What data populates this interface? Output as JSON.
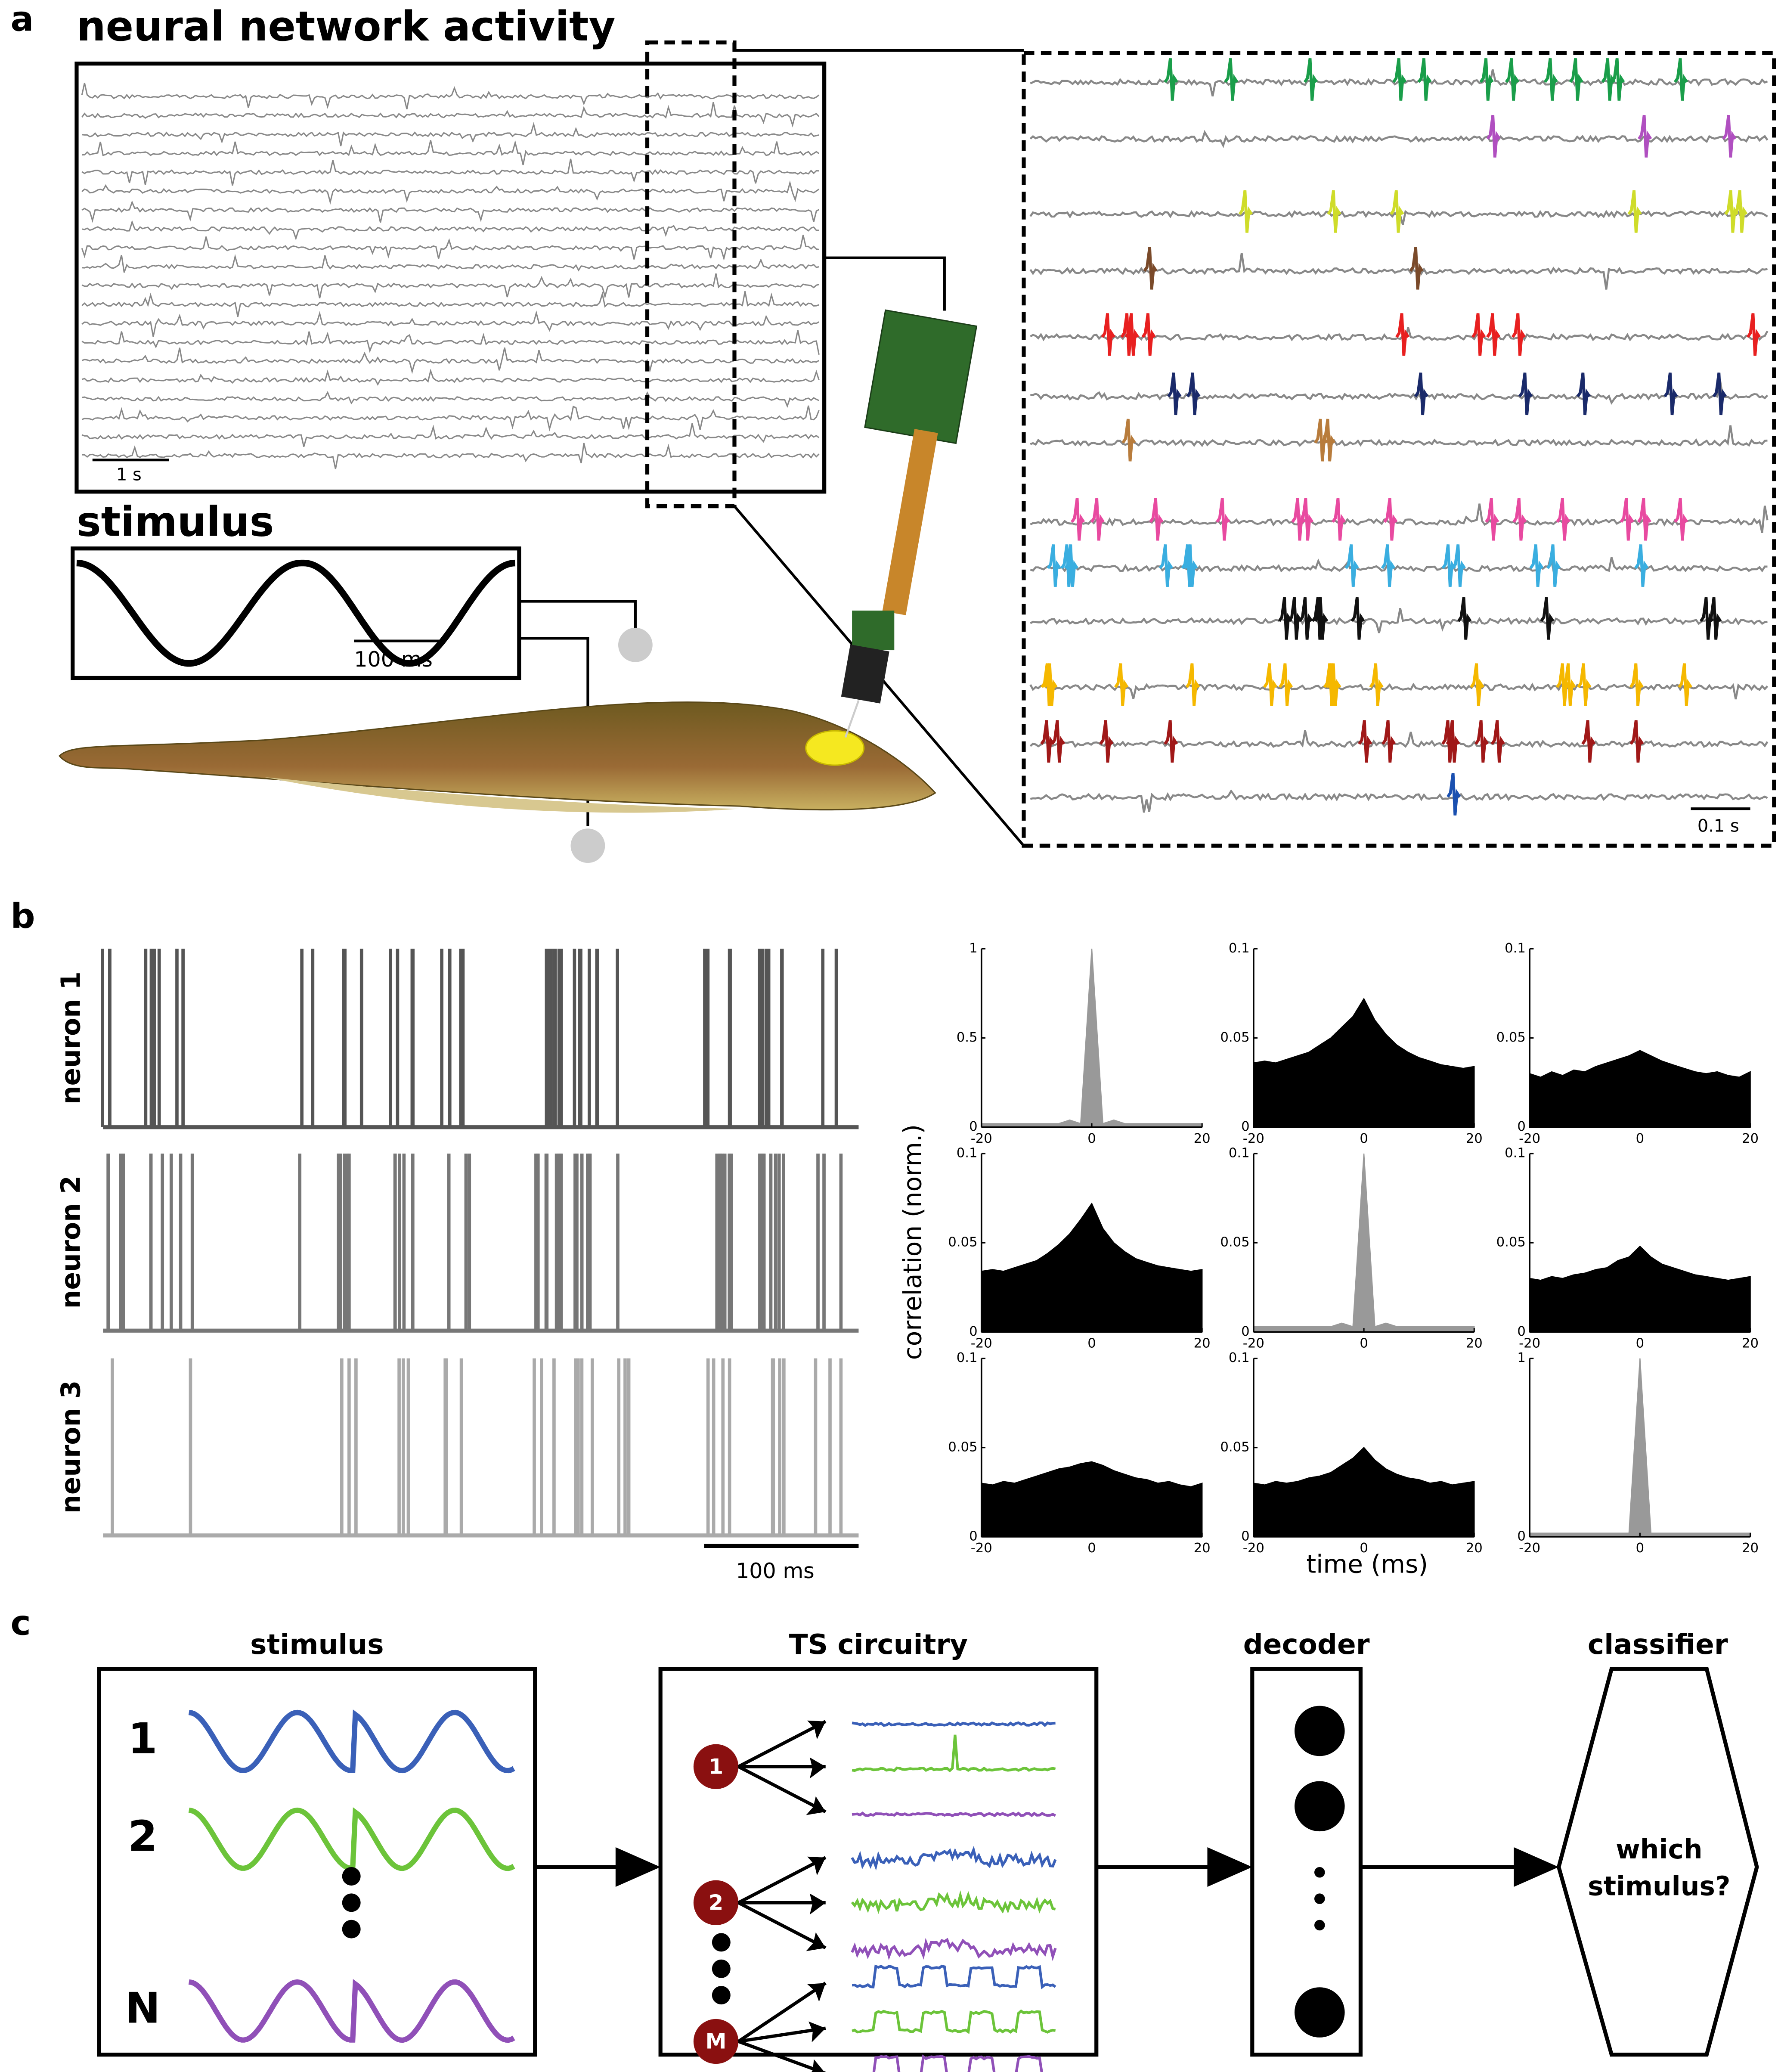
{
  "panel_a": {
    "label": "a",
    "network_title": "neural network activity",
    "network_scale": "1 s",
    "stimulus_title": "stimulus",
    "stimulus_scale": "100 ms",
    "zoom_scale": "0.1 s"
  },
  "panel_b": {
    "label": "b",
    "neurons": [
      "neuron 1",
      "neuron 2",
      "neuron 3"
    ],
    "scale": "100 ms",
    "y_label": "correlation (norm.)",
    "x_label": "time (ms)",
    "xlim": [
      -20,
      20
    ],
    "xticks": [
      -20,
      0,
      20
    ],
    "x": [
      -20,
      -18,
      -16,
      -14,
      -12,
      -10,
      -8,
      -6,
      -4,
      -2,
      0,
      2,
      4,
      6,
      8,
      10,
      12,
      14,
      16,
      18,
      20
    ],
    "plots": [
      {
        "ylim": [
          0,
          1
        ],
        "yticks": [
          0,
          0.5,
          1
        ],
        "color": "#999999",
        "values": [
          0.02,
          0.02,
          0.02,
          0.02,
          0.02,
          0.02,
          0.02,
          0.02,
          0.04,
          0.02,
          1,
          0.02,
          0.04,
          0.02,
          0.02,
          0.02,
          0.02,
          0.02,
          0.02,
          0.02,
          0.02
        ]
      },
      {
        "ylim": [
          0,
          0.1
        ],
        "yticks": [
          0,
          0.05,
          0.1
        ],
        "color": "#000000",
        "values": [
          0.036,
          0.037,
          0.036,
          0.038,
          0.04,
          0.042,
          0.046,
          0.05,
          0.056,
          0.062,
          0.072,
          0.06,
          0.052,
          0.046,
          0.042,
          0.039,
          0.037,
          0.035,
          0.034,
          0.033,
          0.034
        ]
      },
      {
        "ylim": [
          0,
          0.1
        ],
        "yticks": [
          0,
          0.05,
          0.1
        ],
        "color": "#000000",
        "values": [
          0.03,
          0.028,
          0.031,
          0.029,
          0.032,
          0.031,
          0.034,
          0.036,
          0.038,
          0.04,
          0.043,
          0.04,
          0.037,
          0.035,
          0.033,
          0.031,
          0.03,
          0.031,
          0.029,
          0.028,
          0.031
        ]
      },
      {
        "ylim": [
          0,
          0.1
        ],
        "yticks": [
          0,
          0.05,
          0.1
        ],
        "color": "#000000",
        "values": [
          0.034,
          0.035,
          0.034,
          0.036,
          0.038,
          0.04,
          0.044,
          0.049,
          0.055,
          0.063,
          0.072,
          0.058,
          0.05,
          0.045,
          0.041,
          0.039,
          0.037,
          0.036,
          0.035,
          0.034,
          0.035
        ]
      },
      {
        "ylim": [
          0,
          0.1
        ],
        "yticks": [
          0,
          0.05,
          0.1
        ],
        "color": "#999999",
        "values": [
          0.003,
          0.003,
          0.003,
          0.003,
          0.003,
          0.003,
          0.003,
          0.003,
          0.005,
          0.003,
          0.1,
          0.003,
          0.005,
          0.003,
          0.003,
          0.003,
          0.003,
          0.003,
          0.003,
          0.003,
          0.003
        ]
      },
      {
        "ylim": [
          0,
          0.1
        ],
        "yticks": [
          0,
          0.05,
          0.1
        ],
        "color": "#000000",
        "values": [
          0.03,
          0.029,
          0.031,
          0.03,
          0.032,
          0.033,
          0.035,
          0.036,
          0.04,
          0.042,
          0.048,
          0.042,
          0.038,
          0.036,
          0.034,
          0.032,
          0.031,
          0.03,
          0.029,
          0.03,
          0.031
        ]
      },
      {
        "ylim": [
          0,
          0.1
        ],
        "yticks": [
          0,
          0.05,
          0.1
        ],
        "color": "#000000",
        "values": [
          0.03,
          0.029,
          0.031,
          0.03,
          0.032,
          0.034,
          0.036,
          0.038,
          0.039,
          0.041,
          0.042,
          0.04,
          0.037,
          0.035,
          0.033,
          0.032,
          0.03,
          0.031,
          0.029,
          0.028,
          0.03
        ]
      },
      {
        "ylim": [
          0,
          0.1
        ],
        "yticks": [
          0,
          0.05,
          0.1
        ],
        "color": "#000000",
        "values": [
          0.03,
          0.029,
          0.031,
          0.03,
          0.031,
          0.033,
          0.034,
          0.036,
          0.04,
          0.044,
          0.05,
          0.043,
          0.038,
          0.035,
          0.033,
          0.032,
          0.03,
          0.031,
          0.029,
          0.03,
          0.031
        ]
      },
      {
        "ylim": [
          0,
          1
        ],
        "yticks": [
          0,
          1
        ],
        "color": "#999999",
        "values": [
          0.02,
          0.02,
          0.02,
          0.02,
          0.02,
          0.02,
          0.02,
          0.02,
          0.02,
          0.02,
          1,
          0.02,
          0.02,
          0.02,
          0.02,
          0.02,
          0.02,
          0.02,
          0.02,
          0.02,
          0.02
        ]
      }
    ]
  },
  "panel_c": {
    "label": "c",
    "stimulus_title": "stimulus",
    "stimuli": [
      "1",
      "2",
      "N"
    ],
    "circuit_title": "TS circuitry",
    "neurons": [
      "1",
      "2",
      "M"
    ],
    "decoder_title": "decoder",
    "classifier_title": "classifier",
    "classifier_text": [
      "which",
      "stimulus?"
    ]
  }
}
